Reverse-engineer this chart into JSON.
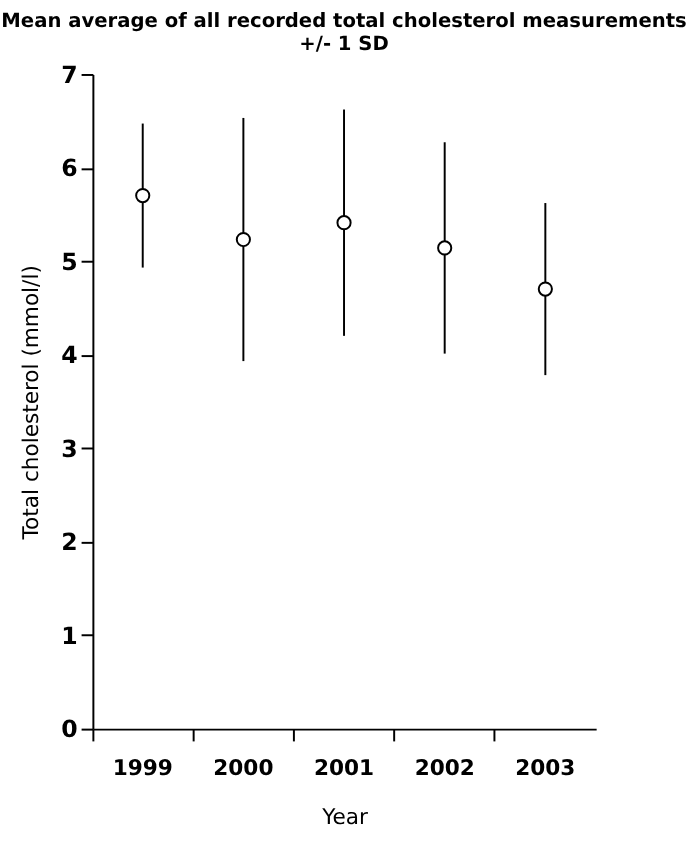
{
  "chart_data": {
    "type": "scatter",
    "title": "Mean average of all recorded total cholesterol measurements",
    "subtitle": "+/- 1 SD",
    "xlabel": "Year",
    "ylabel": "Total cholesterol (mmol/l)",
    "categories": [
      "1999",
      "2000",
      "2001",
      "2002",
      "2003"
    ],
    "values": [
      5.7,
      5.23,
      5.41,
      5.14,
      4.7
    ],
    "errors": [
      0.77,
      1.3,
      1.21,
      1.13,
      0.92
    ],
    "color": "#000000",
    "marker": "circle",
    "ylim": [
      0,
      7
    ],
    "yticks": [
      0,
      1,
      2,
      3,
      4,
      5,
      6,
      7
    ],
    "grid": false
  }
}
